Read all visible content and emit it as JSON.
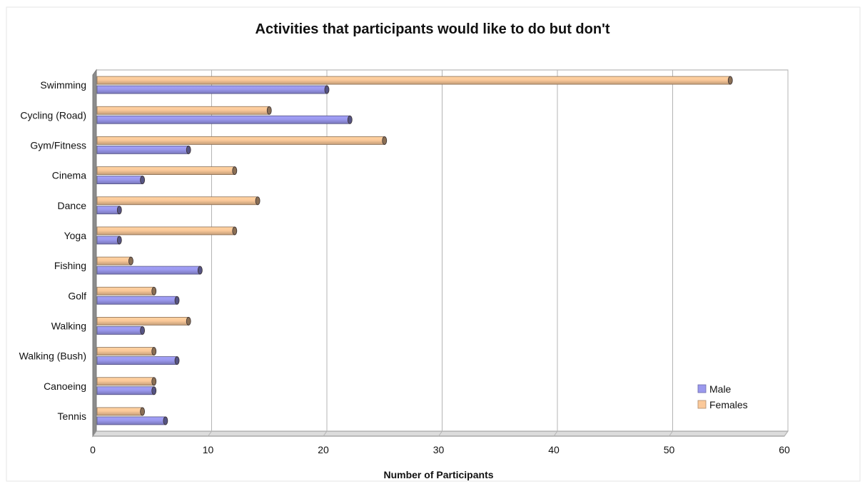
{
  "chart_data": {
    "type": "bar",
    "orientation": "horizontal",
    "title": "Activities that participants would like to do but don't",
    "xlabel": "Number of Participants",
    "ylabel": "",
    "xlim": [
      0,
      60
    ],
    "x_ticks": [
      0,
      10,
      20,
      30,
      40,
      50,
      60
    ],
    "grid": true,
    "legend_placement": "bottom-right",
    "categories": [
      "Swimming",
      "Cycling (Road)",
      "Gym/Fitness",
      "Cinema",
      "Dance",
      "Yoga",
      "Fishing",
      "Golf",
      "Walking",
      "Walking (Bush)",
      "Canoeing",
      "Tennis"
    ],
    "series": [
      {
        "name": "Male",
        "color": "#9b99ee",
        "values": [
          20,
          22,
          8,
          4,
          2,
          2,
          9,
          7,
          4,
          7,
          5,
          6
        ]
      },
      {
        "name": "Females",
        "color": "#fbc99a",
        "values": [
          55,
          15,
          25,
          12,
          14,
          12,
          3,
          5,
          8,
          5,
          5,
          4
        ]
      }
    ]
  }
}
